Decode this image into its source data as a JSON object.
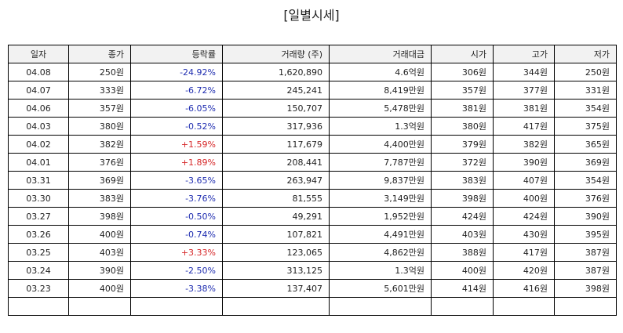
{
  "page_title": "[일별시세]",
  "columns": [
    "일자",
    "종가",
    "등락률",
    "거래량 (주)",
    "거래대금",
    "시가",
    "고가",
    "저가"
  ],
  "rows": [
    {
      "date": "04.08",
      "close": "250원",
      "change": "-24.92%",
      "volume": "1,620,890",
      "amount": "4.6억원",
      "open": "306원",
      "high": "344원",
      "low": "250원"
    },
    {
      "date": "04.07",
      "close": "333원",
      "change": "-6.72%",
      "volume": "245,241",
      "amount": "8,419만원",
      "open": "357원",
      "high": "377원",
      "low": "331원"
    },
    {
      "date": "04.06",
      "close": "357원",
      "change": "-6.05%",
      "volume": "150,707",
      "amount": "5,478만원",
      "open": "381원",
      "high": "381원",
      "low": "354원"
    },
    {
      "date": "04.03",
      "close": "380원",
      "change": "-0.52%",
      "volume": "317,936",
      "amount": "1.3억원",
      "open": "380원",
      "high": "417원",
      "low": "375원"
    },
    {
      "date": "04.02",
      "close": "382원",
      "change": "+1.59%",
      "volume": "117,679",
      "amount": "4,400만원",
      "open": "379원",
      "high": "382원",
      "low": "365원"
    },
    {
      "date": "04.01",
      "close": "376원",
      "change": "+1.89%",
      "volume": "208,441",
      "amount": "7,787만원",
      "open": "372원",
      "high": "390원",
      "low": "369원"
    },
    {
      "date": "03.31",
      "close": "369원",
      "change": "-3.65%",
      "volume": "263,947",
      "amount": "9,837만원",
      "open": "383원",
      "high": "407원",
      "low": "354원"
    },
    {
      "date": "03.30",
      "close": "383원",
      "change": "-3.76%",
      "volume": "81,555",
      "amount": "3,149만원",
      "open": "398원",
      "high": "400원",
      "low": "376원"
    },
    {
      "date": "03.27",
      "close": "398원",
      "change": "-0.50%",
      "volume": "49,291",
      "amount": "1,952만원",
      "open": "424원",
      "high": "424원",
      "low": "390원"
    },
    {
      "date": "03.26",
      "close": "400원",
      "change": "-0.74%",
      "volume": "107,821",
      "amount": "4,491만원",
      "open": "403원",
      "high": "430원",
      "low": "395원"
    },
    {
      "date": "03.25",
      "close": "403원",
      "change": "+3.33%",
      "volume": "123,065",
      "amount": "4,862만원",
      "open": "388원",
      "high": "417원",
      "low": "387원"
    },
    {
      "date": "03.24",
      "close": "390원",
      "change": "-2.50%",
      "volume": "313,125",
      "amount": "1.3억원",
      "open": "400원",
      "high": "420원",
      "low": "387원"
    },
    {
      "date": "03.23",
      "close": "400원",
      "change": "-3.38%",
      "volume": "137,407",
      "amount": "5,601만원",
      "open": "414원",
      "high": "416원",
      "low": "398원"
    }
  ],
  "colors": {
    "rise": "#d62728",
    "fall": "#1f2db0",
    "header_bg": "#f2f2f2"
  }
}
